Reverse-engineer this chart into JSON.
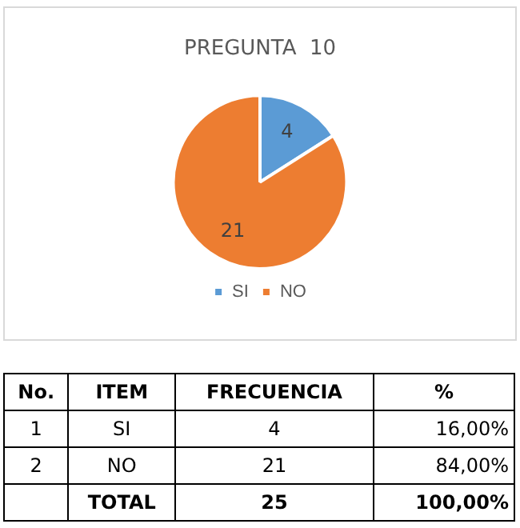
{
  "chart_data": {
    "type": "pie",
    "title": "PREGUNTA  10",
    "categories": [
      "SI",
      "NO"
    ],
    "values": [
      4,
      21
    ],
    "colors": [
      "#5b9bd5",
      "#ed7d31"
    ],
    "data_labels": true,
    "legend": "bottom",
    "annotations": [
      "No.",
      "ITEM",
      "FRECUENCIA",
      "%",
      "1",
      "SI",
      "4",
      "16,00%",
      "2",
      "NO",
      "21",
      "84,00%",
      "TOTAL",
      "25",
      "100,00%"
    ]
  }
}
